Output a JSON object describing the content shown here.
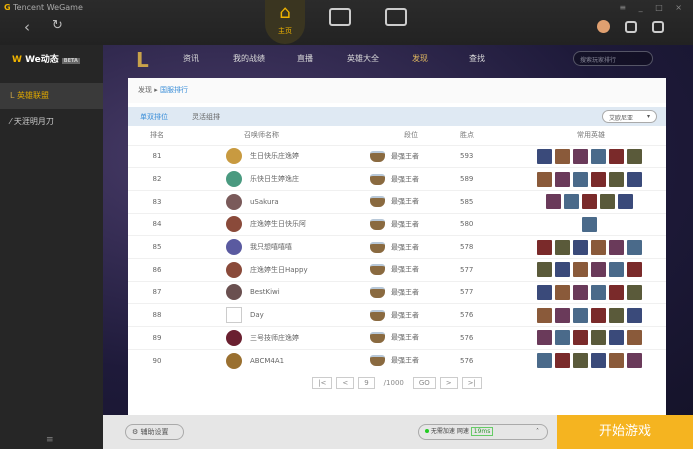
{
  "app": {
    "title": "Tencent WeGame",
    "home_label": "主页",
    "window_controls": "≡ _ □ ×"
  },
  "sidebar": {
    "we": "We动态",
    "beta": "BETA",
    "items": [
      {
        "label": "英雄联盟",
        "active": true
      },
      {
        "label": "天涯明月刀"
      }
    ],
    "bottom": "≡"
  },
  "lolnav": {
    "items": [
      "资讯",
      "我的战绩",
      "直播",
      "英雄大全",
      "发现",
      "查找"
    ],
    "active": "发现",
    "search_placeholder": "搜索玩家排行"
  },
  "breadcrumb": {
    "root": "发现",
    "sep": "▸",
    "current": "国服排行"
  },
  "tabs": [
    "单双排位",
    "灵活组排"
  ],
  "region": "艾欧尼亚",
  "table": {
    "headers": [
      "排名",
      "召唤师名称",
      "段位",
      "胜点",
      "常用英雄"
    ],
    "rows": [
      {
        "rank": "81",
        "name": "生日快乐庄逸婷",
        "tier": "最强王者",
        "lp": "593",
        "heroes": 6,
        "avatar": "#c89a40"
      },
      {
        "rank": "82",
        "name": "乐快日生婷逸庄",
        "tier": "最强王者",
        "lp": "589",
        "heroes": 6,
        "avatar": "#4a9a80"
      },
      {
        "rank": "83",
        "name": "uSakura",
        "tier": "最强王者",
        "lp": "585",
        "heroes": 5,
        "avatar": "#7a5a5a"
      },
      {
        "rank": "84",
        "name": "庄逸婷生日快乐阿",
        "tier": "最强王者",
        "lp": "580",
        "heroes": 1,
        "avatar": "#8a4a3a"
      },
      {
        "rank": "85",
        "name": "我只想嘻嘻嘻",
        "tier": "最强王者",
        "lp": "578",
        "heroes": 6,
        "avatar": "#5a5aa0"
      },
      {
        "rank": "86",
        "name": "庄逸婷生日Happy",
        "tier": "最强王者",
        "lp": "577",
        "heroes": 6,
        "avatar": "#8a4a3a"
      },
      {
        "rank": "87",
        "name": "BestKiwi",
        "tier": "最强王者",
        "lp": "577",
        "heroes": 6,
        "avatar": "#6a5050"
      },
      {
        "rank": "88",
        "name": "Day",
        "tier": "最强王者",
        "lp": "576",
        "heroes": 6,
        "avatar": "#ffffff"
      },
      {
        "rank": "89",
        "name": "三号技师庄逸婷",
        "tier": "最强王者",
        "lp": "576",
        "heroes": 6,
        "avatar": "#6a2030"
      },
      {
        "rank": "90",
        "name": "ABCM4A1",
        "tier": "最强王者",
        "lp": "576",
        "heroes": 6,
        "avatar": "#9a7030"
      }
    ]
  },
  "pager": {
    "first": "|<",
    "prev": "<",
    "page": "9",
    "total": "/1000",
    "go": "GO",
    "next": ">",
    "last": ">|"
  },
  "bottom": {
    "assist": "辅助设置",
    "net_status": "无需加速 网速",
    "ping": "19ms",
    "start": "开始游戏"
  },
  "colors": {
    "accent": "#f5b420",
    "link": "#3a8ed8"
  }
}
